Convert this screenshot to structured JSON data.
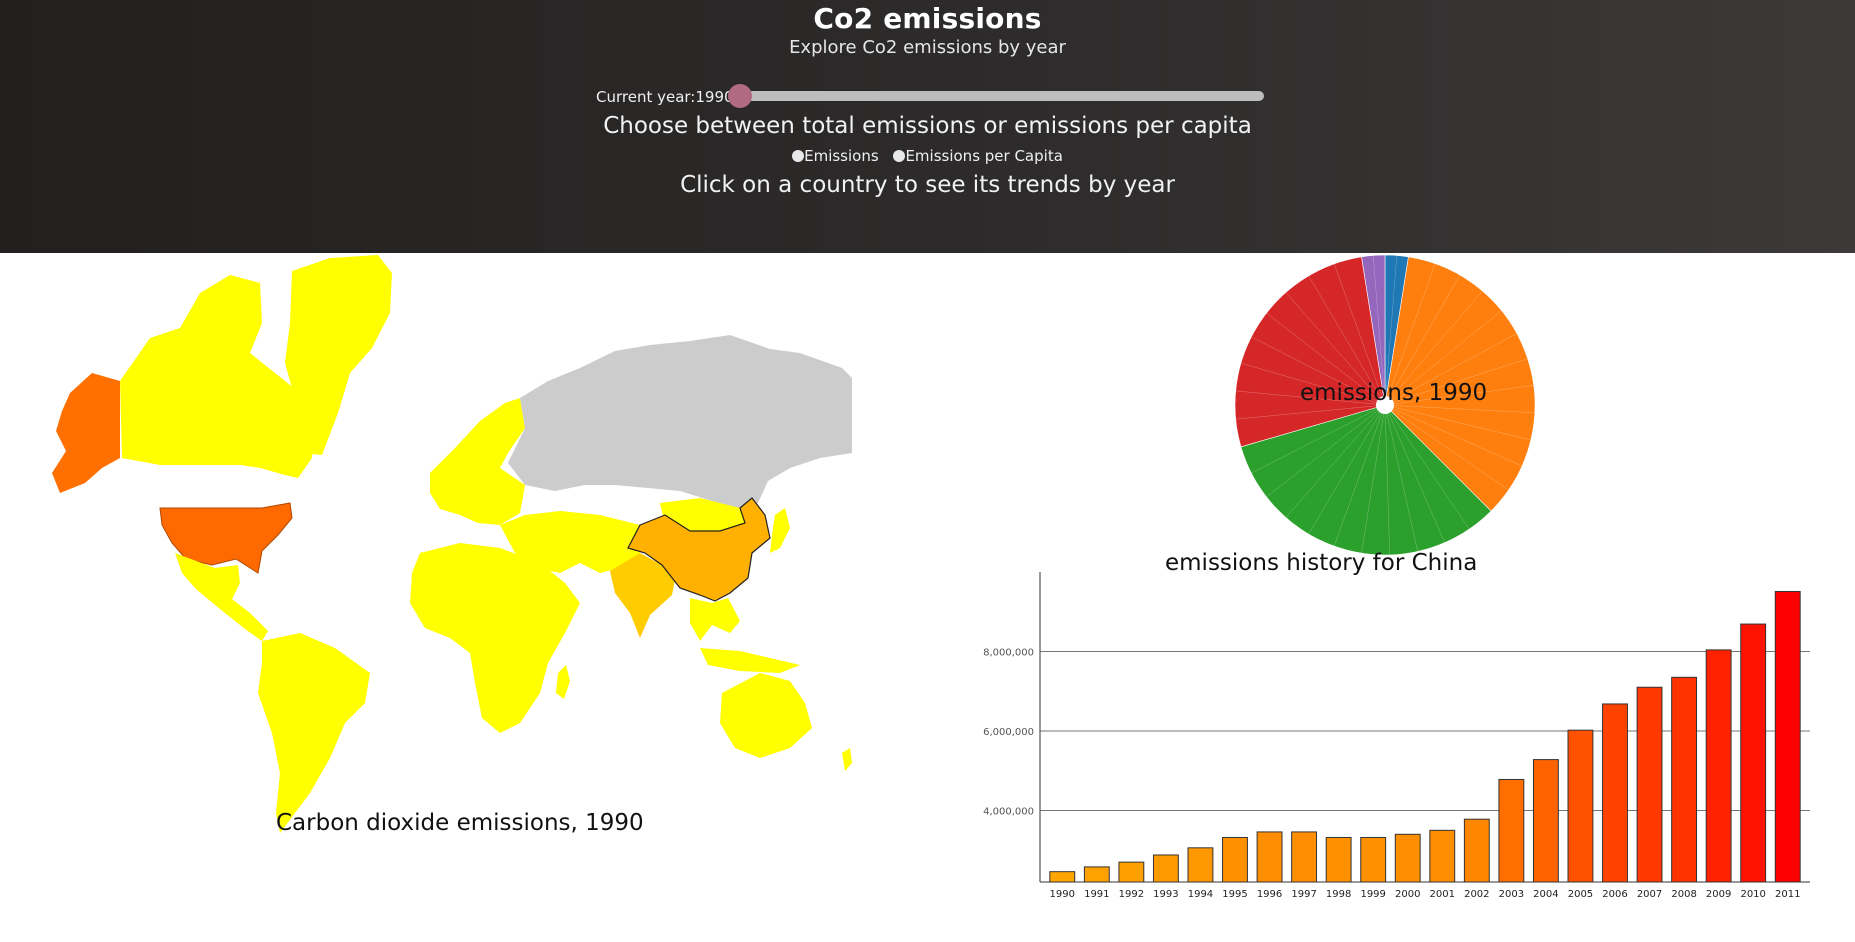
{
  "header": {
    "title": "Co2 emissions",
    "subtitle": "Explore Co2 emissions by year",
    "year_label": "Current year:",
    "year_value": "1990",
    "slider": {
      "min": 1990,
      "max": 2011,
      "value": 1990
    },
    "choose_text": "Choose between total emissions or emissions per capita",
    "radio_emissions": "Emissions",
    "radio_per_capita": "Emissions per Capita",
    "click_text": "Click on a country to see its trends by year"
  },
  "colors": {
    "low": "#ffff00",
    "mid": "#ffb000",
    "high": "#ff6a00",
    "nodata": "#cccccc",
    "pie_blue": "#1f77b4",
    "pie_orange": "#ff7f0e",
    "pie_green": "#2ca02c",
    "pie_red": "#d62728",
    "pie_purple": "#9467bd"
  },
  "map": {
    "caption": "Carbon dioxide emissions, 1990"
  },
  "chart_data": [
    {
      "type": "pie",
      "title": "emissions, 1990",
      "slices": [
        {
          "group": "blue",
          "value": 2.5
        },
        {
          "group": "orange",
          "value": 35
        },
        {
          "group": "green",
          "value": 33
        },
        {
          "group": "red",
          "value": 27
        },
        {
          "group": "purple",
          "value": 2.5
        }
      ]
    },
    {
      "type": "bar",
      "title": "emissions history for China",
      "categories": [
        "1990",
        "1991",
        "1992",
        "1993",
        "1994",
        "1995",
        "1996",
        "1997",
        "1998",
        "1999",
        "2000",
        "2001",
        "2002",
        "2003",
        "2004",
        "2005",
        "2006",
        "2007",
        "2008",
        "2009",
        "2010",
        "2011"
      ],
      "values": [
        2460000,
        2580000,
        2700000,
        2880000,
        3060000,
        3320000,
        3460000,
        3460000,
        3320000,
        3320000,
        3400000,
        3500000,
        3780000,
        4780000,
        5280000,
        6020000,
        6680000,
        7100000,
        7350000,
        8040000,
        8690000,
        9510000
      ],
      "yticks": [
        "4,000,000",
        "6,000,000",
        "8,000,000"
      ],
      "ytick_values": [
        4000000,
        6000000,
        8000000
      ],
      "ylim": [
        2200000,
        10000000
      ],
      "grid": true,
      "color_low": "#ffa500",
      "color_high": "#ff0000"
    }
  ]
}
